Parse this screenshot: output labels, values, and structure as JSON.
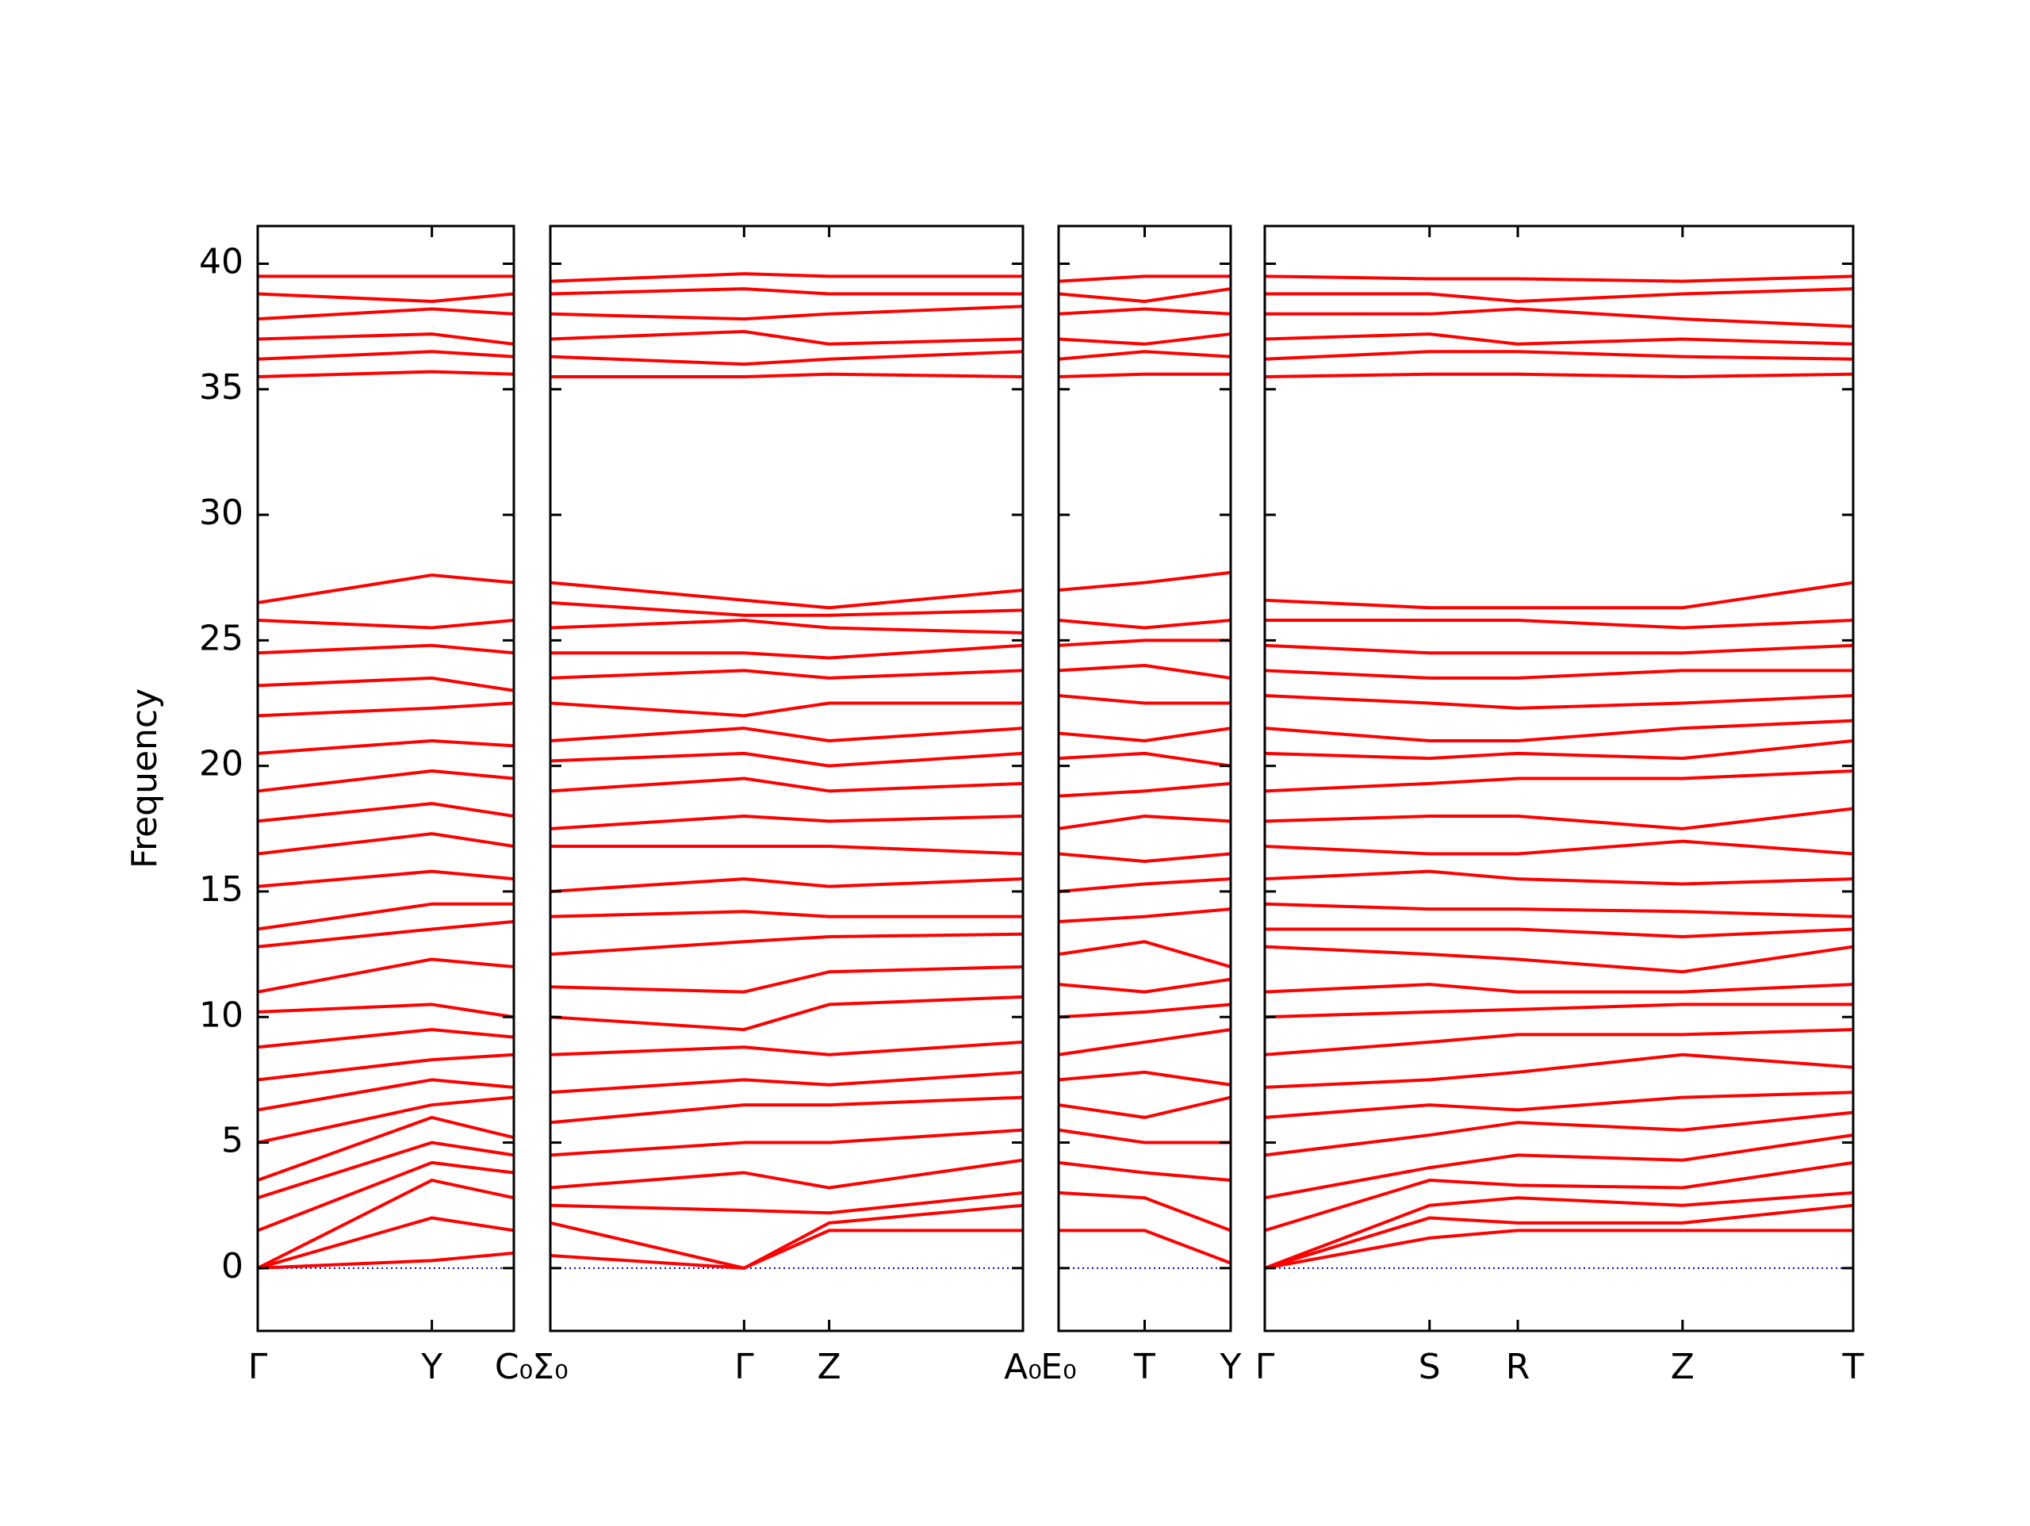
{
  "chart_data": [
    {
      "type": "line",
      "ylabel": "Frequency",
      "color": "#ff0000",
      "zero_line": true,
      "zero_line_color": "#0000cc",
      "x": [
        0,
        0.68,
        1
      ],
      "xlim": [
        0,
        1
      ],
      "xticks": [
        {
          "value": 0,
          "label": "Γ"
        },
        {
          "value": 0.68,
          "label": "Y"
        },
        {
          "value": 1,
          "label": "C₀"
        }
      ],
      "ylim": [
        -2.5,
        41.5
      ],
      "yticks": [
        0,
        5,
        10,
        15,
        20,
        25,
        30,
        35,
        40
      ],
      "series": [
        {
          "values": [
            0,
            0.3,
            0.6
          ]
        },
        {
          "values": [
            0,
            2.0,
            1.5
          ]
        },
        {
          "values": [
            0,
            3.5,
            2.8
          ]
        },
        {
          "values": [
            1.5,
            4.2,
            3.8
          ]
        },
        {
          "values": [
            2.8,
            5.0,
            4.5
          ]
        },
        {
          "values": [
            3.5,
            6.0,
            5.2
          ]
        },
        {
          "values": [
            5.0,
            6.5,
            6.8
          ]
        },
        {
          "values": [
            6.3,
            7.5,
            7.2
          ]
        },
        {
          "values": [
            7.5,
            8.3,
            8.5
          ]
        },
        {
          "values": [
            8.8,
            9.5,
            9.2
          ]
        },
        {
          "values": [
            10.2,
            10.5,
            10.0
          ]
        },
        {
          "values": [
            11.0,
            12.3,
            12.0
          ]
        },
        {
          "values": [
            12.8,
            13.5,
            13.8
          ]
        },
        {
          "values": [
            13.5,
            14.5,
            14.5
          ]
        },
        {
          "values": [
            15.2,
            15.8,
            15.5
          ]
        },
        {
          "values": [
            16.5,
            17.3,
            16.8
          ]
        },
        {
          "values": [
            17.8,
            18.5,
            18.0
          ]
        },
        {
          "values": [
            19.0,
            19.8,
            19.5
          ]
        },
        {
          "values": [
            20.5,
            21.0,
            20.8
          ]
        },
        {
          "values": [
            22.0,
            22.3,
            22.5
          ]
        },
        {
          "values": [
            23.2,
            23.5,
            23.0
          ]
        },
        {
          "values": [
            24.5,
            24.8,
            24.5
          ]
        },
        {
          "values": [
            25.8,
            25.5,
            25.8
          ]
        },
        {
          "values": [
            26.5,
            27.6,
            27.3
          ]
        },
        {
          "values": [
            35.5,
            35.7,
            35.6
          ]
        },
        {
          "values": [
            36.2,
            36.5,
            36.3
          ]
        },
        {
          "values": [
            37.0,
            37.2,
            36.8
          ]
        },
        {
          "values": [
            37.8,
            38.2,
            38.0
          ]
        },
        {
          "values": [
            38.8,
            38.5,
            38.8
          ]
        },
        {
          "values": [
            39.5,
            39.5,
            39.5
          ]
        }
      ]
    },
    {
      "type": "line",
      "color": "#ff0000",
      "zero_line": true,
      "zero_line_color": "#0000cc",
      "x": [
        0,
        0.41,
        0.59,
        1
      ],
      "xlim": [
        0,
        1
      ],
      "xticks": [
        {
          "value": 0,
          "label": "Σ₀"
        },
        {
          "value": 0.41,
          "label": "Γ"
        },
        {
          "value": 0.59,
          "label": "Z"
        },
        {
          "value": 1,
          "label": "A₀"
        }
      ],
      "ylim": [
        -2.5,
        41.5
      ],
      "yticks": [
        0,
        5,
        10,
        15,
        20,
        25,
        30,
        35,
        40
      ],
      "series": [
        {
          "values": [
            0.5,
            0,
            1.5,
            1.5
          ]
        },
        {
          "values": [
            1.8,
            0,
            1.8,
            2.5
          ]
        },
        {
          "values": [
            2.5,
            2.3,
            2.2,
            3.0
          ]
        },
        {
          "values": [
            3.2,
            3.8,
            3.2,
            4.3
          ]
        },
        {
          "values": [
            4.5,
            5.0,
            5.0,
            5.5
          ]
        },
        {
          "values": [
            5.8,
            6.5,
            6.5,
            6.8
          ]
        },
        {
          "values": [
            7.0,
            7.5,
            7.3,
            7.8
          ]
        },
        {
          "values": [
            8.5,
            8.8,
            8.5,
            9.0
          ]
        },
        {
          "values": [
            10.0,
            9.5,
            10.5,
            10.8
          ]
        },
        {
          "values": [
            11.2,
            11.0,
            11.8,
            12.0
          ]
        },
        {
          "values": [
            12.5,
            13.0,
            13.2,
            13.3
          ]
        },
        {
          "values": [
            14.0,
            14.2,
            14.0,
            14.0
          ]
        },
        {
          "values": [
            15.0,
            15.5,
            15.2,
            15.5
          ]
        },
        {
          "values": [
            16.8,
            16.8,
            16.8,
            16.5
          ]
        },
        {
          "values": [
            17.5,
            18.0,
            17.8,
            18.0
          ]
        },
        {
          "values": [
            19.0,
            19.5,
            19.0,
            19.3
          ]
        },
        {
          "values": [
            20.2,
            20.5,
            20.0,
            20.5
          ]
        },
        {
          "values": [
            21.0,
            21.5,
            21.0,
            21.5
          ]
        },
        {
          "values": [
            22.5,
            22.0,
            22.5,
            22.5
          ]
        },
        {
          "values": [
            23.5,
            23.8,
            23.5,
            23.8
          ]
        },
        {
          "values": [
            24.5,
            24.5,
            24.3,
            24.8
          ]
        },
        {
          "values": [
            25.5,
            25.8,
            25.5,
            25.3
          ]
        },
        {
          "values": [
            26.5,
            26.0,
            26.0,
            26.2
          ]
        },
        {
          "values": [
            27.3,
            26.6,
            26.3,
            27.0
          ]
        },
        {
          "values": [
            35.5,
            35.5,
            35.6,
            35.5
          ]
        },
        {
          "values": [
            36.3,
            36.0,
            36.2,
            36.5
          ]
        },
        {
          "values": [
            37.0,
            37.3,
            36.8,
            37.0
          ]
        },
        {
          "values": [
            38.0,
            37.8,
            38.0,
            38.3
          ]
        },
        {
          "values": [
            38.8,
            39.0,
            38.8,
            38.8
          ]
        },
        {
          "values": [
            39.3,
            39.6,
            39.5,
            39.5
          ]
        }
      ]
    },
    {
      "type": "line",
      "color": "#ff0000",
      "zero_line": true,
      "zero_line_color": "#0000cc",
      "x": [
        0,
        0.5,
        1
      ],
      "xlim": [
        0,
        1
      ],
      "xticks": [
        {
          "value": 0,
          "label": "E₀"
        },
        {
          "value": 0.5,
          "label": "T"
        },
        {
          "value": 1,
          "label": "Y"
        }
      ],
      "ylim": [
        -2.5,
        41.5
      ],
      "yticks": [
        0,
        5,
        10,
        15,
        20,
        25,
        30,
        35,
        40
      ],
      "series": [
        {
          "values": [
            1.5,
            1.5,
            0.2
          ]
        },
        {
          "values": [
            3.0,
            2.8,
            1.5
          ]
        },
        {
          "values": [
            4.2,
            3.8,
            3.5
          ]
        },
        {
          "values": [
            5.5,
            5.0,
            5.0
          ]
        },
        {
          "values": [
            6.5,
            6.0,
            6.8
          ]
        },
        {
          "values": [
            7.5,
            7.8,
            7.3
          ]
        },
        {
          "values": [
            8.5,
            9.0,
            9.5
          ]
        },
        {
          "values": [
            10.0,
            10.2,
            10.5
          ]
        },
        {
          "values": [
            11.3,
            11.0,
            11.5
          ]
        },
        {
          "values": [
            12.5,
            13.0,
            12.0
          ]
        },
        {
          "values": [
            13.8,
            14.0,
            14.3
          ]
        },
        {
          "values": [
            15.0,
            15.3,
            15.5
          ]
        },
        {
          "values": [
            16.5,
            16.2,
            16.5
          ]
        },
        {
          "values": [
            17.5,
            18.0,
            17.8
          ]
        },
        {
          "values": [
            18.8,
            19.0,
            19.3
          ]
        },
        {
          "values": [
            20.3,
            20.5,
            20.0
          ]
        },
        {
          "values": [
            21.3,
            21.0,
            21.5
          ]
        },
        {
          "values": [
            22.8,
            22.5,
            22.5
          ]
        },
        {
          "values": [
            23.8,
            24.0,
            23.5
          ]
        },
        {
          "values": [
            24.8,
            25.0,
            25.0
          ]
        },
        {
          "values": [
            25.8,
            25.5,
            25.8
          ]
        },
        {
          "values": [
            27.0,
            27.3,
            27.7
          ]
        },
        {
          "values": [
            35.5,
            35.6,
            35.6
          ]
        },
        {
          "values": [
            36.2,
            36.5,
            36.3
          ]
        },
        {
          "values": [
            37.0,
            36.8,
            37.2
          ]
        },
        {
          "values": [
            38.0,
            38.2,
            38.0
          ]
        },
        {
          "values": [
            38.8,
            38.5,
            39.0
          ]
        },
        {
          "values": [
            39.3,
            39.5,
            39.5
          ]
        }
      ]
    },
    {
      "type": "line",
      "color": "#ff0000",
      "zero_line": true,
      "zero_line_color": "#0000cc",
      "x": [
        0,
        0.28,
        0.43,
        0.71,
        1
      ],
      "xlim": [
        0,
        1
      ],
      "xticks": [
        {
          "value": 0,
          "label": "Γ"
        },
        {
          "value": 0.28,
          "label": "S"
        },
        {
          "value": 0.43,
          "label": "R"
        },
        {
          "value": 0.71,
          "label": "Z"
        },
        {
          "value": 1,
          "label": "T"
        }
      ],
      "ylim": [
        -2.5,
        41.5
      ],
      "yticks": [
        0,
        5,
        10,
        15,
        20,
        25,
        30,
        35,
        40
      ],
      "series": [
        {
          "values": [
            0,
            1.2,
            1.5,
            1.5,
            1.5
          ]
        },
        {
          "values": [
            0,
            2.0,
            1.8,
            1.8,
            2.5
          ]
        },
        {
          "values": [
            0,
            2.5,
            2.8,
            2.5,
            3.0
          ]
        },
        {
          "values": [
            1.5,
            3.5,
            3.3,
            3.2,
            4.2
          ]
        },
        {
          "values": [
            2.8,
            4.0,
            4.5,
            4.3,
            5.3
          ]
        },
        {
          "values": [
            4.5,
            5.3,
            5.8,
            5.5,
            6.2
          ]
        },
        {
          "values": [
            6.0,
            6.5,
            6.3,
            6.8,
            7.0
          ]
        },
        {
          "values": [
            7.2,
            7.5,
            7.8,
            8.5,
            8.0
          ]
        },
        {
          "values": [
            8.5,
            9.0,
            9.3,
            9.3,
            9.5
          ]
        },
        {
          "values": [
            10.0,
            10.2,
            10.3,
            10.5,
            10.5
          ]
        },
        {
          "values": [
            11.0,
            11.3,
            11.0,
            11.0,
            11.3
          ]
        },
        {
          "values": [
            12.8,
            12.5,
            12.3,
            11.8,
            12.8
          ]
        },
        {
          "values": [
            13.5,
            13.5,
            13.5,
            13.2,
            13.5
          ]
        },
        {
          "values": [
            14.5,
            14.3,
            14.3,
            14.2,
            14.0
          ]
        },
        {
          "values": [
            15.5,
            15.8,
            15.5,
            15.3,
            15.5
          ]
        },
        {
          "values": [
            16.8,
            16.5,
            16.5,
            17.0,
            16.5
          ]
        },
        {
          "values": [
            17.8,
            18.0,
            18.0,
            17.5,
            18.3
          ]
        },
        {
          "values": [
            19.0,
            19.3,
            19.5,
            19.5,
            19.8
          ]
        },
        {
          "values": [
            20.5,
            20.3,
            20.5,
            20.3,
            21.0
          ]
        },
        {
          "values": [
            21.5,
            21.0,
            21.0,
            21.5,
            21.8
          ]
        },
        {
          "values": [
            22.8,
            22.5,
            22.3,
            22.5,
            22.8
          ]
        },
        {
          "values": [
            23.8,
            23.5,
            23.5,
            23.8,
            23.8
          ]
        },
        {
          "values": [
            24.8,
            24.5,
            24.5,
            24.5,
            24.8
          ]
        },
        {
          "values": [
            25.8,
            25.8,
            25.8,
            25.5,
            25.8
          ]
        },
        {
          "values": [
            26.6,
            26.3,
            26.3,
            26.3,
            27.3
          ]
        },
        {
          "values": [
            35.5,
            35.6,
            35.6,
            35.5,
            35.6
          ]
        },
        {
          "values": [
            36.2,
            36.5,
            36.5,
            36.3,
            36.2
          ]
        },
        {
          "values": [
            37.0,
            37.2,
            36.8,
            37.0,
            36.8
          ]
        },
        {
          "values": [
            38.0,
            38.0,
            38.2,
            37.8,
            37.5
          ]
        },
        {
          "values": [
            38.8,
            38.8,
            38.5,
            38.8,
            39.0
          ]
        },
        {
          "values": [
            39.5,
            39.4,
            39.4,
            39.3,
            39.5
          ]
        }
      ]
    }
  ]
}
